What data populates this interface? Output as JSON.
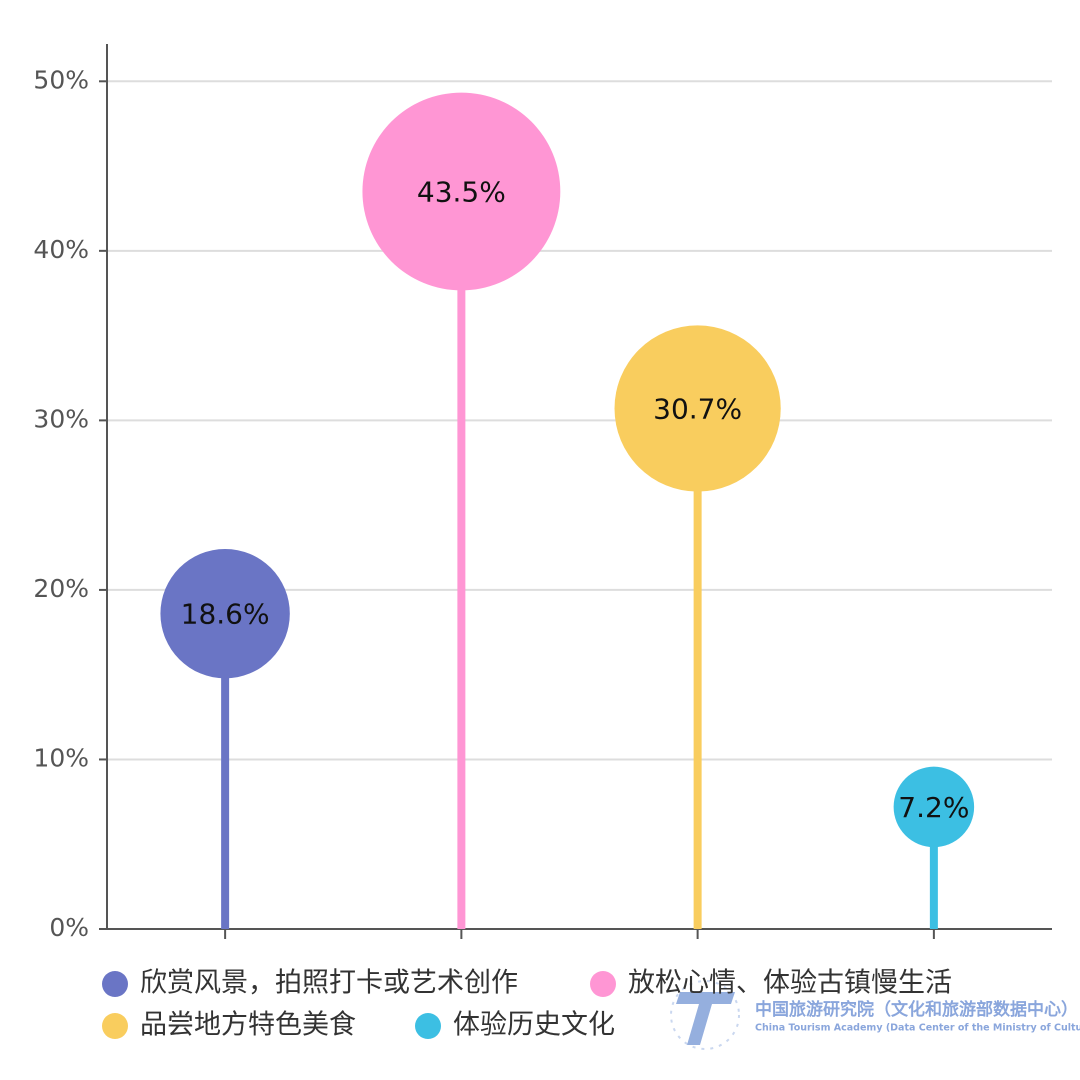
{
  "chart_data": {
    "type": "lollipop",
    "categories": [
      "欣赏风景，拍照打卡或艺术创作",
      "放松心情、体验古镇慢生活",
      "品尝地方特色美食",
      "体验历史文化"
    ],
    "values": [
      18.6,
      43.5,
      30.7,
      7.2
    ],
    "value_labels": [
      "18.6%",
      "43.5%",
      "30.7%",
      "7.2%"
    ],
    "colors": [
      "#6a75c5",
      "#ff96d4",
      "#f9cd5e",
      "#3cbfe3"
    ],
    "ylim": [
      0,
      52.2
    ],
    "yticks": [
      {
        "value": 0,
        "label": "0%"
      },
      {
        "value": 10,
        "label": "10%"
      },
      {
        "value": 20,
        "label": "20%"
      },
      {
        "value": 30,
        "label": "30%"
      },
      {
        "value": 40,
        "label": "40%"
      },
      {
        "value": 50,
        "label": "50%"
      }
    ],
    "grid": true
  },
  "watermark": {
    "title": "中国旅游研究院（文化和旅游部数据中心）",
    "subtitle": "China Tourism Academy (Data Center of the Ministry of Culture and Tourism)"
  }
}
